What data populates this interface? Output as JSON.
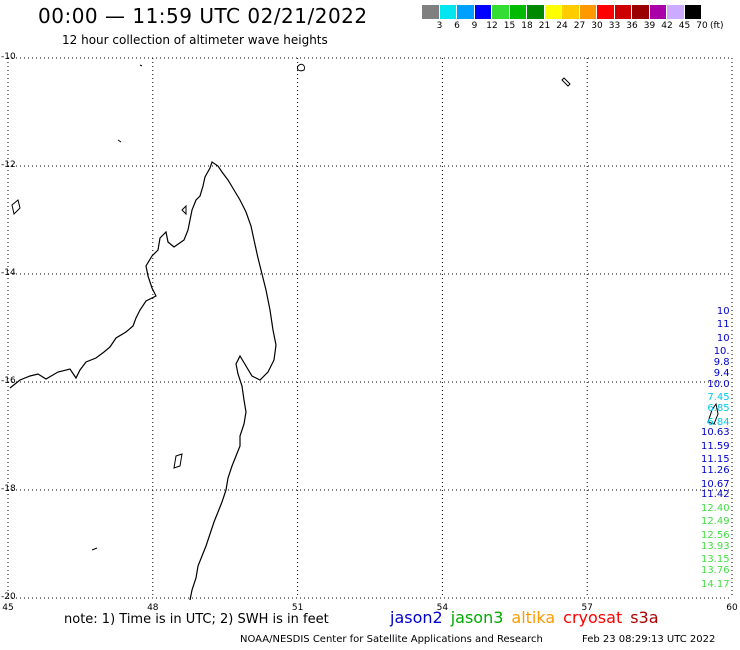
{
  "header": {
    "title": "00:00 — 11:59 UTC 02/21/2022",
    "subtitle": "12 hour collection of altimeter wave heights"
  },
  "legend": {
    "unit": "(ft)",
    "bins": [
      {
        "label": "3",
        "color": "#808080"
      },
      {
        "label": "6",
        "color": "#00e5ee"
      },
      {
        "label": "9",
        "color": "#00a0ff"
      },
      {
        "label": "12",
        "color": "#0000ff"
      },
      {
        "label": "15",
        "color": "#33dd33"
      },
      {
        "label": "18",
        "color": "#00bb00"
      },
      {
        "label": "21",
        "color": "#008800"
      },
      {
        "label": "24",
        "color": "#ffff00"
      },
      {
        "label": "27",
        "color": "#ffcc00"
      },
      {
        "label": "30",
        "color": "#ff9900"
      },
      {
        "label": "33",
        "color": "#ff0000"
      },
      {
        "label": "36",
        "color": "#cc0000"
      },
      {
        "label": "39",
        "color": "#990000"
      },
      {
        "label": "42",
        "color": "#aa00aa"
      },
      {
        "label": "45",
        "color": "#ccaaff"
      },
      {
        "label": "70",
        "color": "#000000"
      }
    ]
  },
  "axes": {
    "lat_labels": [
      "-10",
      "-12",
      "-14",
      "-16",
      "-18",
      "-20"
    ],
    "lon_labels": [
      "45",
      "48",
      "51",
      "54",
      "57",
      "60"
    ]
  },
  "wave_heights": [
    {
      "text": "10",
      "color": "#0000cc",
      "lat": -14.7,
      "lon": 59.95
    },
    {
      "text": "11",
      "color": "#0000cc",
      "lat": -14.95,
      "lon": 59.95
    },
    {
      "text": "10",
      "color": "#0000cc",
      "lat": -15.2,
      "lon": 59.95
    },
    {
      "text": "10.",
      "color": "#0000cc",
      "lat": -15.45,
      "lon": 59.95
    },
    {
      "text": "9.8",
      "color": "#0000cc",
      "lat": -15.65,
      "lon": 59.95
    },
    {
      "text": "9.4",
      "color": "#0000cc",
      "lat": -15.85,
      "lon": 59.95
    },
    {
      "text": "10.0",
      "color": "#0000cc",
      "lat": -16.05,
      "lon": 59.95
    },
    {
      "text": "7.45",
      "color": "#00c8ee",
      "lat": -16.3,
      "lon": 59.95
    },
    {
      "text": "6.85",
      "color": "#00c8ee",
      "lat": -16.5,
      "lon": 59.95
    },
    {
      "text": "6.84",
      "color": "#00c8ee",
      "lat": -16.75,
      "lon": 59.95
    },
    {
      "text": "10.63",
      "color": "#0000cc",
      "lat": -16.95,
      "lon": 59.95
    },
    {
      "text": "11.59",
      "color": "#0000cc",
      "lat": -17.2,
      "lon": 59.95
    },
    {
      "text": "11.15",
      "color": "#0000cc",
      "lat": -17.45,
      "lon": 59.95
    },
    {
      "text": "11.26",
      "color": "#0000cc",
      "lat": -17.65,
      "lon": 59.95
    },
    {
      "text": "10.67",
      "color": "#0000cc",
      "lat": -17.9,
      "lon": 59.95
    },
    {
      "text": "11.42",
      "color": "#0000cc",
      "lat": -18.1,
      "lon": 59.95
    },
    {
      "text": "12.40",
      "color": "#44dd44",
      "lat": -18.35,
      "lon": 59.95
    },
    {
      "text": "12.49",
      "color": "#44dd44",
      "lat": -18.6,
      "lon": 59.95
    },
    {
      "text": "12.56",
      "color": "#44dd44",
      "lat": -18.85,
      "lon": 59.95
    },
    {
      "text": "13.93",
      "color": "#44dd44",
      "lat": -19.05,
      "lon": 59.95
    },
    {
      "text": "13.15",
      "color": "#44dd44",
      "lat": -19.3,
      "lon": 59.95
    },
    {
      "text": "13.76",
      "color": "#44dd44",
      "lat": -19.5,
      "lon": 59.95
    },
    {
      "text": "14.17",
      "color": "#44dd44",
      "lat": -19.75,
      "lon": 59.95
    }
  ],
  "footer": {
    "note": "note: 1) Time is in UTC; 2) SWH is in feet",
    "satellites": [
      {
        "name": "jason2",
        "color": "#0000cc"
      },
      {
        "name": "jason3",
        "color": "#00aa00"
      },
      {
        "name": "altika",
        "color": "#ff9900"
      },
      {
        "name": "cryosat",
        "color": "#ff0000"
      },
      {
        "name": "s3a",
        "color": "#aa0000"
      }
    ],
    "credit": "NOAA/NESDIS Center for Satellite Applications and Research",
    "timestamp": "Feb 23 08:29:13 UTC 2022"
  }
}
